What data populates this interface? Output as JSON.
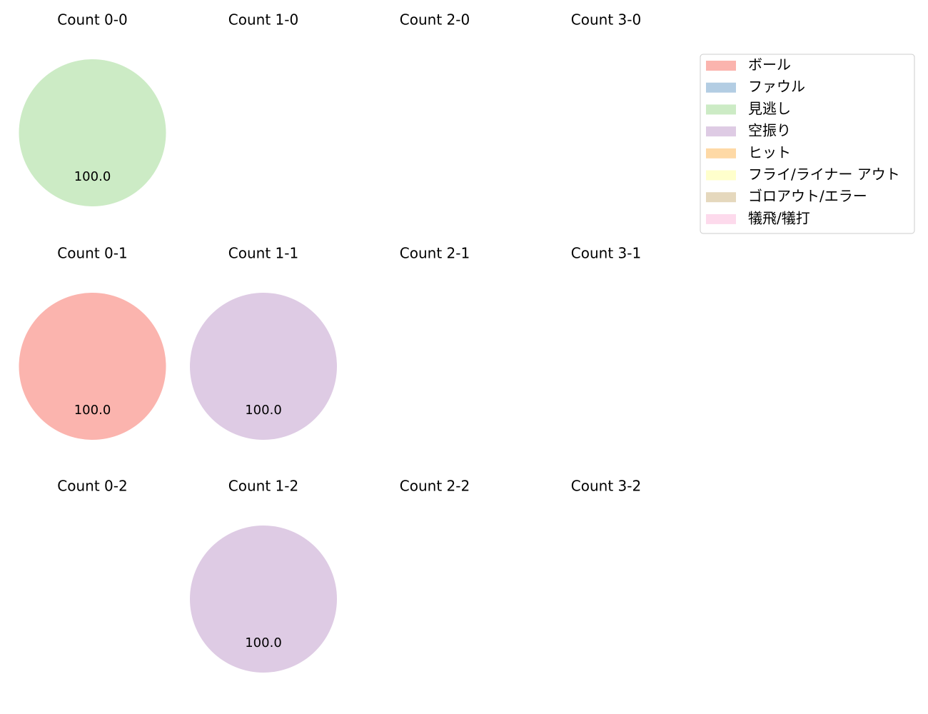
{
  "chart_data": {
    "type": "pie",
    "legend": {
      "placement": "upper-right",
      "entries": [
        {
          "label": "ボール",
          "color": "#fbb4ae"
        },
        {
          "label": "ファウル",
          "color": "#b3cde3"
        },
        {
          "label": "見逃し",
          "color": "#ccebc5"
        },
        {
          "label": "空振り",
          "color": "#decbe4"
        },
        {
          "label": "ヒット",
          "color": "#fed9a6"
        },
        {
          "label": "フライ/ライナー アウト",
          "color": "#ffffcc"
        },
        {
          "label": "ゴロアウト/エラー",
          "color": "#e5d8bd"
        },
        {
          "label": "犠飛/犠打",
          "color": "#fddaec"
        }
      ]
    },
    "subplots": [
      {
        "title": "Count 0-0",
        "slices": [
          {
            "category": "見逃し",
            "value": 100.0,
            "label": "100.0"
          }
        ]
      },
      {
        "title": "Count 1-0",
        "slices": []
      },
      {
        "title": "Count 2-0",
        "slices": []
      },
      {
        "title": "Count 3-0",
        "slices": []
      },
      {
        "title": "Count 0-1",
        "slices": [
          {
            "category": "ボール",
            "value": 100.0,
            "label": "100.0"
          }
        ]
      },
      {
        "title": "Count 1-1",
        "slices": [
          {
            "category": "空振り",
            "value": 100.0,
            "label": "100.0"
          }
        ]
      },
      {
        "title": "Count 2-1",
        "slices": []
      },
      {
        "title": "Count 3-1",
        "slices": []
      },
      {
        "title": "Count 0-2",
        "slices": []
      },
      {
        "title": "Count 1-2",
        "slices": [
          {
            "category": "空振り",
            "value": 100.0,
            "label": "100.0"
          }
        ]
      },
      {
        "title": "Count 2-2",
        "slices": []
      },
      {
        "title": "Count 3-2",
        "slices": []
      }
    ]
  }
}
